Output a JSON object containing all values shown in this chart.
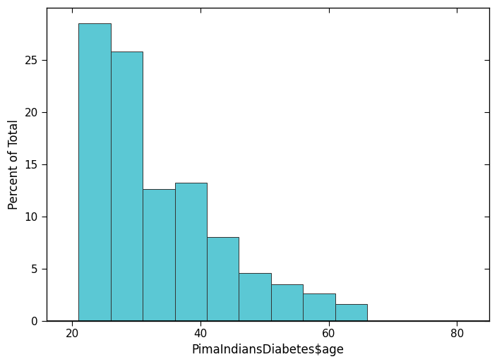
{
  "bin_edges": [
    21,
    26,
    31,
    36,
    41,
    46,
    51,
    56,
    61,
    66,
    71
  ],
  "bar_heights": [
    28.5,
    25.8,
    12.6,
    13.2,
    8.0,
    4.6,
    3.5,
    2.6,
    1.6,
    0.0
  ],
  "bar_color": "#5BC8D4",
  "bar_edgecolor": "#333333",
  "bar_linewidth": 0.7,
  "xlabel": "PimaIndiansDiabetes$age",
  "ylabel": "Percent of Total",
  "xlim": [
    16,
    85
  ],
  "ylim": [
    0,
    30
  ],
  "xticks": [
    20,
    40,
    60,
    80
  ],
  "yticks": [
    0,
    5,
    10,
    15,
    20,
    25
  ],
  "tick_fontsize": 11,
  "label_fontsize": 12,
  "figsize": [
    7.04,
    5.16
  ],
  "dpi": 100,
  "bg_color": "#ffffff"
}
